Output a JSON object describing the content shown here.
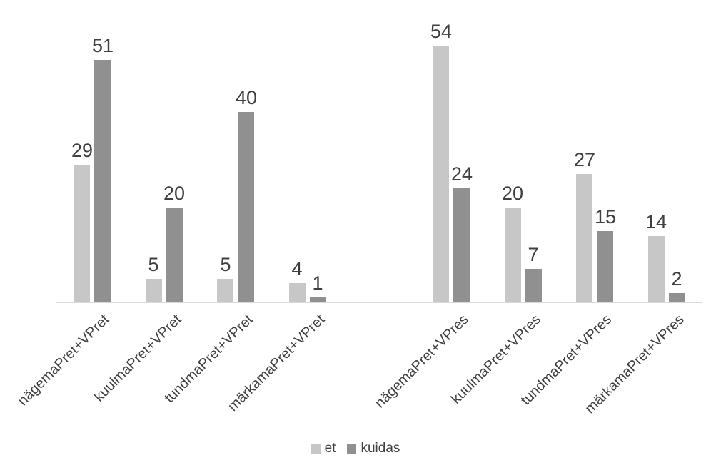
{
  "chart_data": {
    "type": "bar",
    "title": "",
    "xlabel": "",
    "ylabel": "",
    "ylim": [
      0,
      60
    ],
    "grid": false,
    "legend_position": "bottom",
    "categories": [
      "nägemaPret+VPret",
      "kuulmaPret+VPret",
      "tundmaPret+VPret",
      "märkamaPret+VPret",
      "",
      "nägemaPret+VPres",
      "kuulmaPret+VPres",
      "tundmaPret+VPres",
      "märkamaPret+VPres"
    ],
    "series": [
      {
        "name": "et",
        "color": "#c7c7c7",
        "values": [
          29,
          5,
          5,
          4,
          null,
          54,
          20,
          27,
          14
        ]
      },
      {
        "name": "kuidas",
        "color": "#909090",
        "values": [
          51,
          20,
          40,
          1,
          null,
          24,
          7,
          15,
          2
        ]
      }
    ]
  },
  "colors": {
    "axis_line": "#d9d9d9",
    "label_text": "#3f3f3f",
    "category_text": "#404040"
  }
}
